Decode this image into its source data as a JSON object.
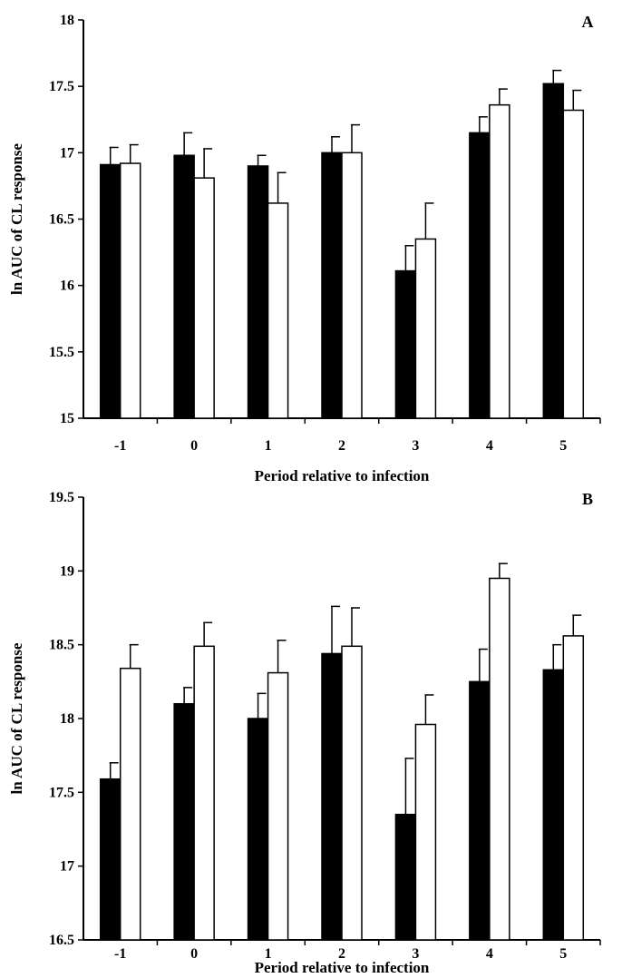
{
  "colors": {
    "series_filled": "#000000",
    "series_open": "#ffffff",
    "stroke": "#000000"
  },
  "chart_data": [
    {
      "type": "bar",
      "panel_label": "A",
      "title": "",
      "xlabel": "Period relative to infection",
      "ylabel": "ln AUC of CL response",
      "categories": [
        "-1",
        "0",
        "1",
        "2",
        "3",
        "4",
        "5"
      ],
      "ylim": [
        15,
        18
      ],
      "yticks": [
        "15",
        "15.5",
        "16",
        "16.5",
        "17",
        "17.5",
        "18"
      ],
      "grid": false,
      "legend": "none",
      "error_bars": "upper",
      "series": [
        {
          "values": [
            16.91,
            16.98,
            16.9,
            17.0,
            16.11,
            17.15,
            17.52
          ],
          "errors": [
            0.13,
            0.17,
            0.08,
            0.12,
            0.19,
            0.12,
            0.1
          ]
        },
        {
          "values": [
            16.92,
            16.81,
            16.62,
            17.0,
            16.35,
            17.36,
            17.32
          ],
          "errors": [
            0.14,
            0.22,
            0.23,
            0.21,
            0.27,
            0.12,
            0.15
          ]
        }
      ]
    },
    {
      "type": "bar",
      "panel_label": "B",
      "title": "",
      "xlabel": "Period relative to infection",
      "ylabel": "ln AUC of CL response",
      "categories": [
        "-1",
        "0",
        "1",
        "2",
        "3",
        "4",
        "5"
      ],
      "ylim": [
        16.5,
        19.5
      ],
      "yticks": [
        "16.5",
        "17",
        "17.5",
        "18",
        "18.5",
        "19",
        "19.5"
      ],
      "grid": false,
      "legend": "none",
      "error_bars": "upper",
      "series": [
        {
          "values": [
            17.59,
            18.1,
            18.0,
            18.44,
            17.35,
            18.25,
            18.33
          ],
          "errors": [
            0.11,
            0.11,
            0.17,
            0.32,
            0.38,
            0.22,
            0.17
          ]
        },
        {
          "values": [
            18.34,
            18.49,
            18.31,
            18.49,
            17.96,
            18.95,
            18.56
          ],
          "errors": [
            0.16,
            0.16,
            0.22,
            0.26,
            0.2,
            0.1,
            0.14
          ]
        }
      ]
    }
  ]
}
